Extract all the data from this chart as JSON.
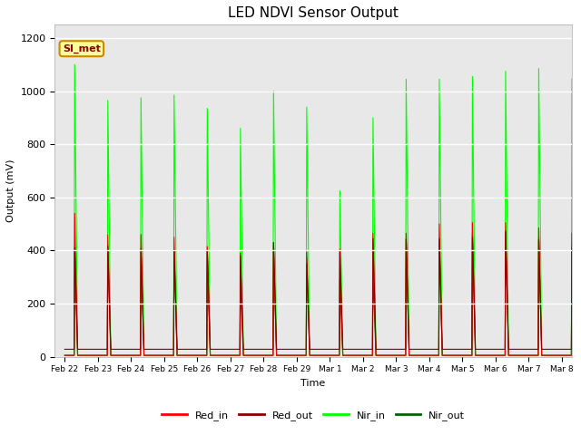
{
  "title": "LED NDVI Sensor Output",
  "xlabel": "Time",
  "ylabel": "Output (mV)",
  "ylim": [
    0,
    1250
  ],
  "yticks": [
    0,
    200,
    400,
    600,
    800,
    1000,
    1200
  ],
  "background_color": "#e8e8e8",
  "annotation_text": "SI_met",
  "annotation_bg": "#ffff99",
  "annotation_border": "#cc8800",
  "colors": {
    "Red_in": "#ff0000",
    "Red_out": "#8b0000",
    "Nir_in": "#00ff00",
    "Nir_out": "#006400"
  },
  "xtick_labels": [
    "Feb 22",
    "Feb 23",
    "Feb 24",
    "Feb 25",
    "Feb 26",
    "Feb 27",
    "Feb 28",
    "Feb 29",
    "Mar 1",
    "Mar 2",
    "Mar 3",
    "Mar 4",
    "Mar 5",
    "Mar 6",
    "Mar 7",
    "Mar 8"
  ],
  "spikes": {
    "Red_in": [
      540,
      460,
      460,
      450,
      415,
      270,
      400,
      370,
      405,
      465,
      465,
      500,
      505,
      505,
      485,
      430
    ],
    "Red_out": [
      410,
      415,
      408,
      402,
      400,
      390,
      430,
      350,
      400,
      445,
      442,
      445,
      450,
      470,
      440,
      410
    ],
    "Nir_in": [
      1100,
      965,
      975,
      985,
      935,
      860,
      1000,
      940,
      625,
      900,
      1045,
      1045,
      1055,
      1075,
      1085,
      1045
    ],
    "Nir_out": [
      400,
      400,
      400,
      400,
      400,
      380,
      430,
      395,
      290,
      305,
      445,
      440,
      465,
      475,
      450,
      465
    ]
  },
  "base_value": 5,
  "red_out_base": 28,
  "pts_per_day": 200,
  "spike_rise": 3,
  "spike_fall": 18
}
